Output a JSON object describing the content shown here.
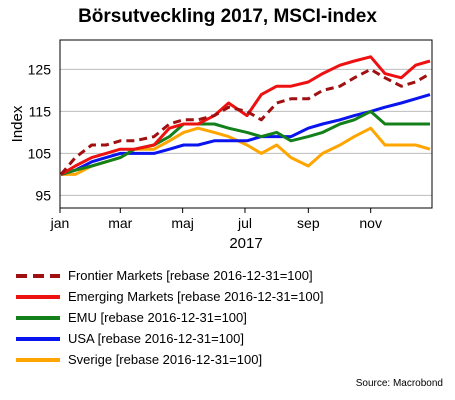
{
  "chart_data": {
    "type": "line",
    "title": "Börsutveckling 2017, MSCI-index",
    "xlabel": "2017",
    "ylabel": "Index",
    "x_ticks": [
      "jan",
      "mar",
      "maj",
      "jul",
      "sep",
      "nov"
    ],
    "x_range": [
      "2017-01-01",
      "2017-12-31"
    ],
    "x_tick_dates": [
      "2017-01-01",
      "2017-03-01",
      "2017-05-01",
      "2017-07-01",
      "2017-09-01",
      "2017-11-01"
    ],
    "ylim": [
      92,
      132
    ],
    "y_ticks": [
      95,
      105,
      115,
      125
    ],
    "grid": true,
    "legend_position": "bottom",
    "x": [
      "2017-01-02",
      "2017-01-16",
      "2017-02-01",
      "2017-02-15",
      "2017-03-01",
      "2017-03-15",
      "2017-04-03",
      "2017-04-18",
      "2017-05-02",
      "2017-05-16",
      "2017-06-01",
      "2017-06-15",
      "2017-07-03",
      "2017-07-17",
      "2017-08-01",
      "2017-08-15",
      "2017-09-01",
      "2017-09-15",
      "2017-10-02",
      "2017-10-16",
      "2017-11-01",
      "2017-11-15",
      "2017-12-01",
      "2017-12-15",
      "2017-12-29"
    ],
    "series": [
      {
        "name": "Frontier Markets [rebase 2016-12-31=100]",
        "color": "#a01010",
        "dashed": true,
        "values": [
          100,
          104,
          107,
          107,
          108,
          108,
          109,
          112,
          113,
          113,
          114,
          116,
          115,
          113,
          117,
          118,
          118,
          120,
          121,
          123,
          125,
          123,
          121,
          122,
          124
        ]
      },
      {
        "name": "Emerging Markets [rebase 2016-12-31=100]",
        "color": "#ee1111",
        "dashed": false,
        "values": [
          100,
          102,
          104,
          105,
          106,
          106,
          107,
          111,
          112,
          112,
          114,
          117,
          114,
          119,
          121,
          121,
          122,
          124,
          126,
          127,
          128,
          124,
          123,
          126,
          127
        ]
      },
      {
        "name": "EMU [rebase 2016-12-31=100]",
        "color": "#13801b",
        "dashed": false,
        "values": [
          100,
          101,
          102,
          103,
          104,
          106,
          107,
          109,
          112,
          112,
          112,
          111,
          110,
          109,
          110,
          108,
          109,
          110,
          112,
          113,
          115,
          112,
          112,
          112,
          112
        ]
      },
      {
        "name": "USA [rebase 2016-12-31=100]",
        "color": "#0a14ee",
        "dashed": false,
        "values": [
          100,
          101,
          103,
          104,
          105,
          105,
          105,
          106,
          107,
          107,
          108,
          108,
          108,
          109,
          109,
          109,
          111,
          112,
          113,
          114,
          115,
          116,
          117,
          118,
          119
        ]
      },
      {
        "name": "Sverige [rebase 2016-12-31=100]",
        "color": "#ffa500",
        "dashed": false,
        "values": [
          100,
          100,
          102,
          103,
          104,
          106,
          106,
          108,
          110,
          111,
          110,
          109,
          107,
          105,
          107,
          104,
          102,
          105,
          107,
          109,
          111,
          107,
          107,
          107,
          106
        ]
      }
    ]
  },
  "source": "Source: Macrobond"
}
